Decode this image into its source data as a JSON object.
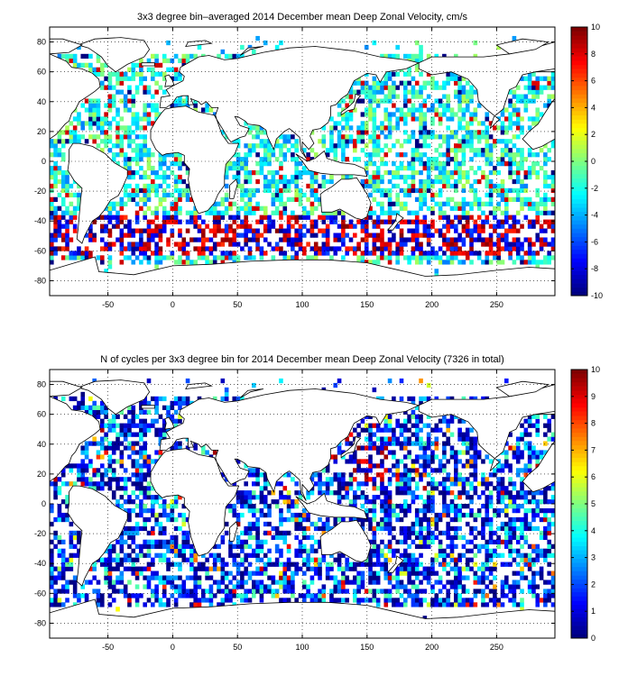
{
  "chart_data": [
    {
      "type": "heatmap",
      "title": "3x3 degree bin–averaged 2014 December mean Deep Zonal Velocity, cm/s",
      "xlabel": "",
      "ylabel": "",
      "xlim": [
        -95,
        295
      ],
      "ylim": [
        -90,
        90
      ],
      "x_ticks": [
        -50,
        0,
        50,
        100,
        150,
        200,
        250
      ],
      "y_ticks": [
        80,
        60,
        40,
        20,
        0,
        -20,
        -40,
        -60,
        -80
      ],
      "grid": true,
      "colorbar": {
        "min": -10,
        "max": 10,
        "ticks": [
          10,
          8,
          6,
          4,
          2,
          0,
          -2,
          -4,
          -6,
          -8,
          -10
        ],
        "colormap": "jet"
      },
      "bin_size_deg": 3,
      "seed": 7
    },
    {
      "type": "heatmap",
      "title": "N of cycles per 3x3 degree bin for 2014 December mean Deep Zonal Velocity (7326 in total)",
      "xlabel": "",
      "ylabel": "",
      "xlim": [
        -95,
        295
      ],
      "ylim": [
        -90,
        90
      ],
      "x_ticks": [
        -50,
        0,
        50,
        100,
        150,
        200,
        250
      ],
      "y_ticks": [
        80,
        60,
        40,
        20,
        0,
        -20,
        -40,
        -60,
        -80
      ],
      "grid": true,
      "colorbar": {
        "min": 0,
        "max": 10,
        "ticks": [
          10,
          9,
          8,
          7,
          6,
          5,
          4,
          3,
          2,
          1,
          0
        ],
        "colormap": "jet"
      },
      "bin_size_deg": 3,
      "total_cycles": 7326,
      "seed": 13
    }
  ]
}
